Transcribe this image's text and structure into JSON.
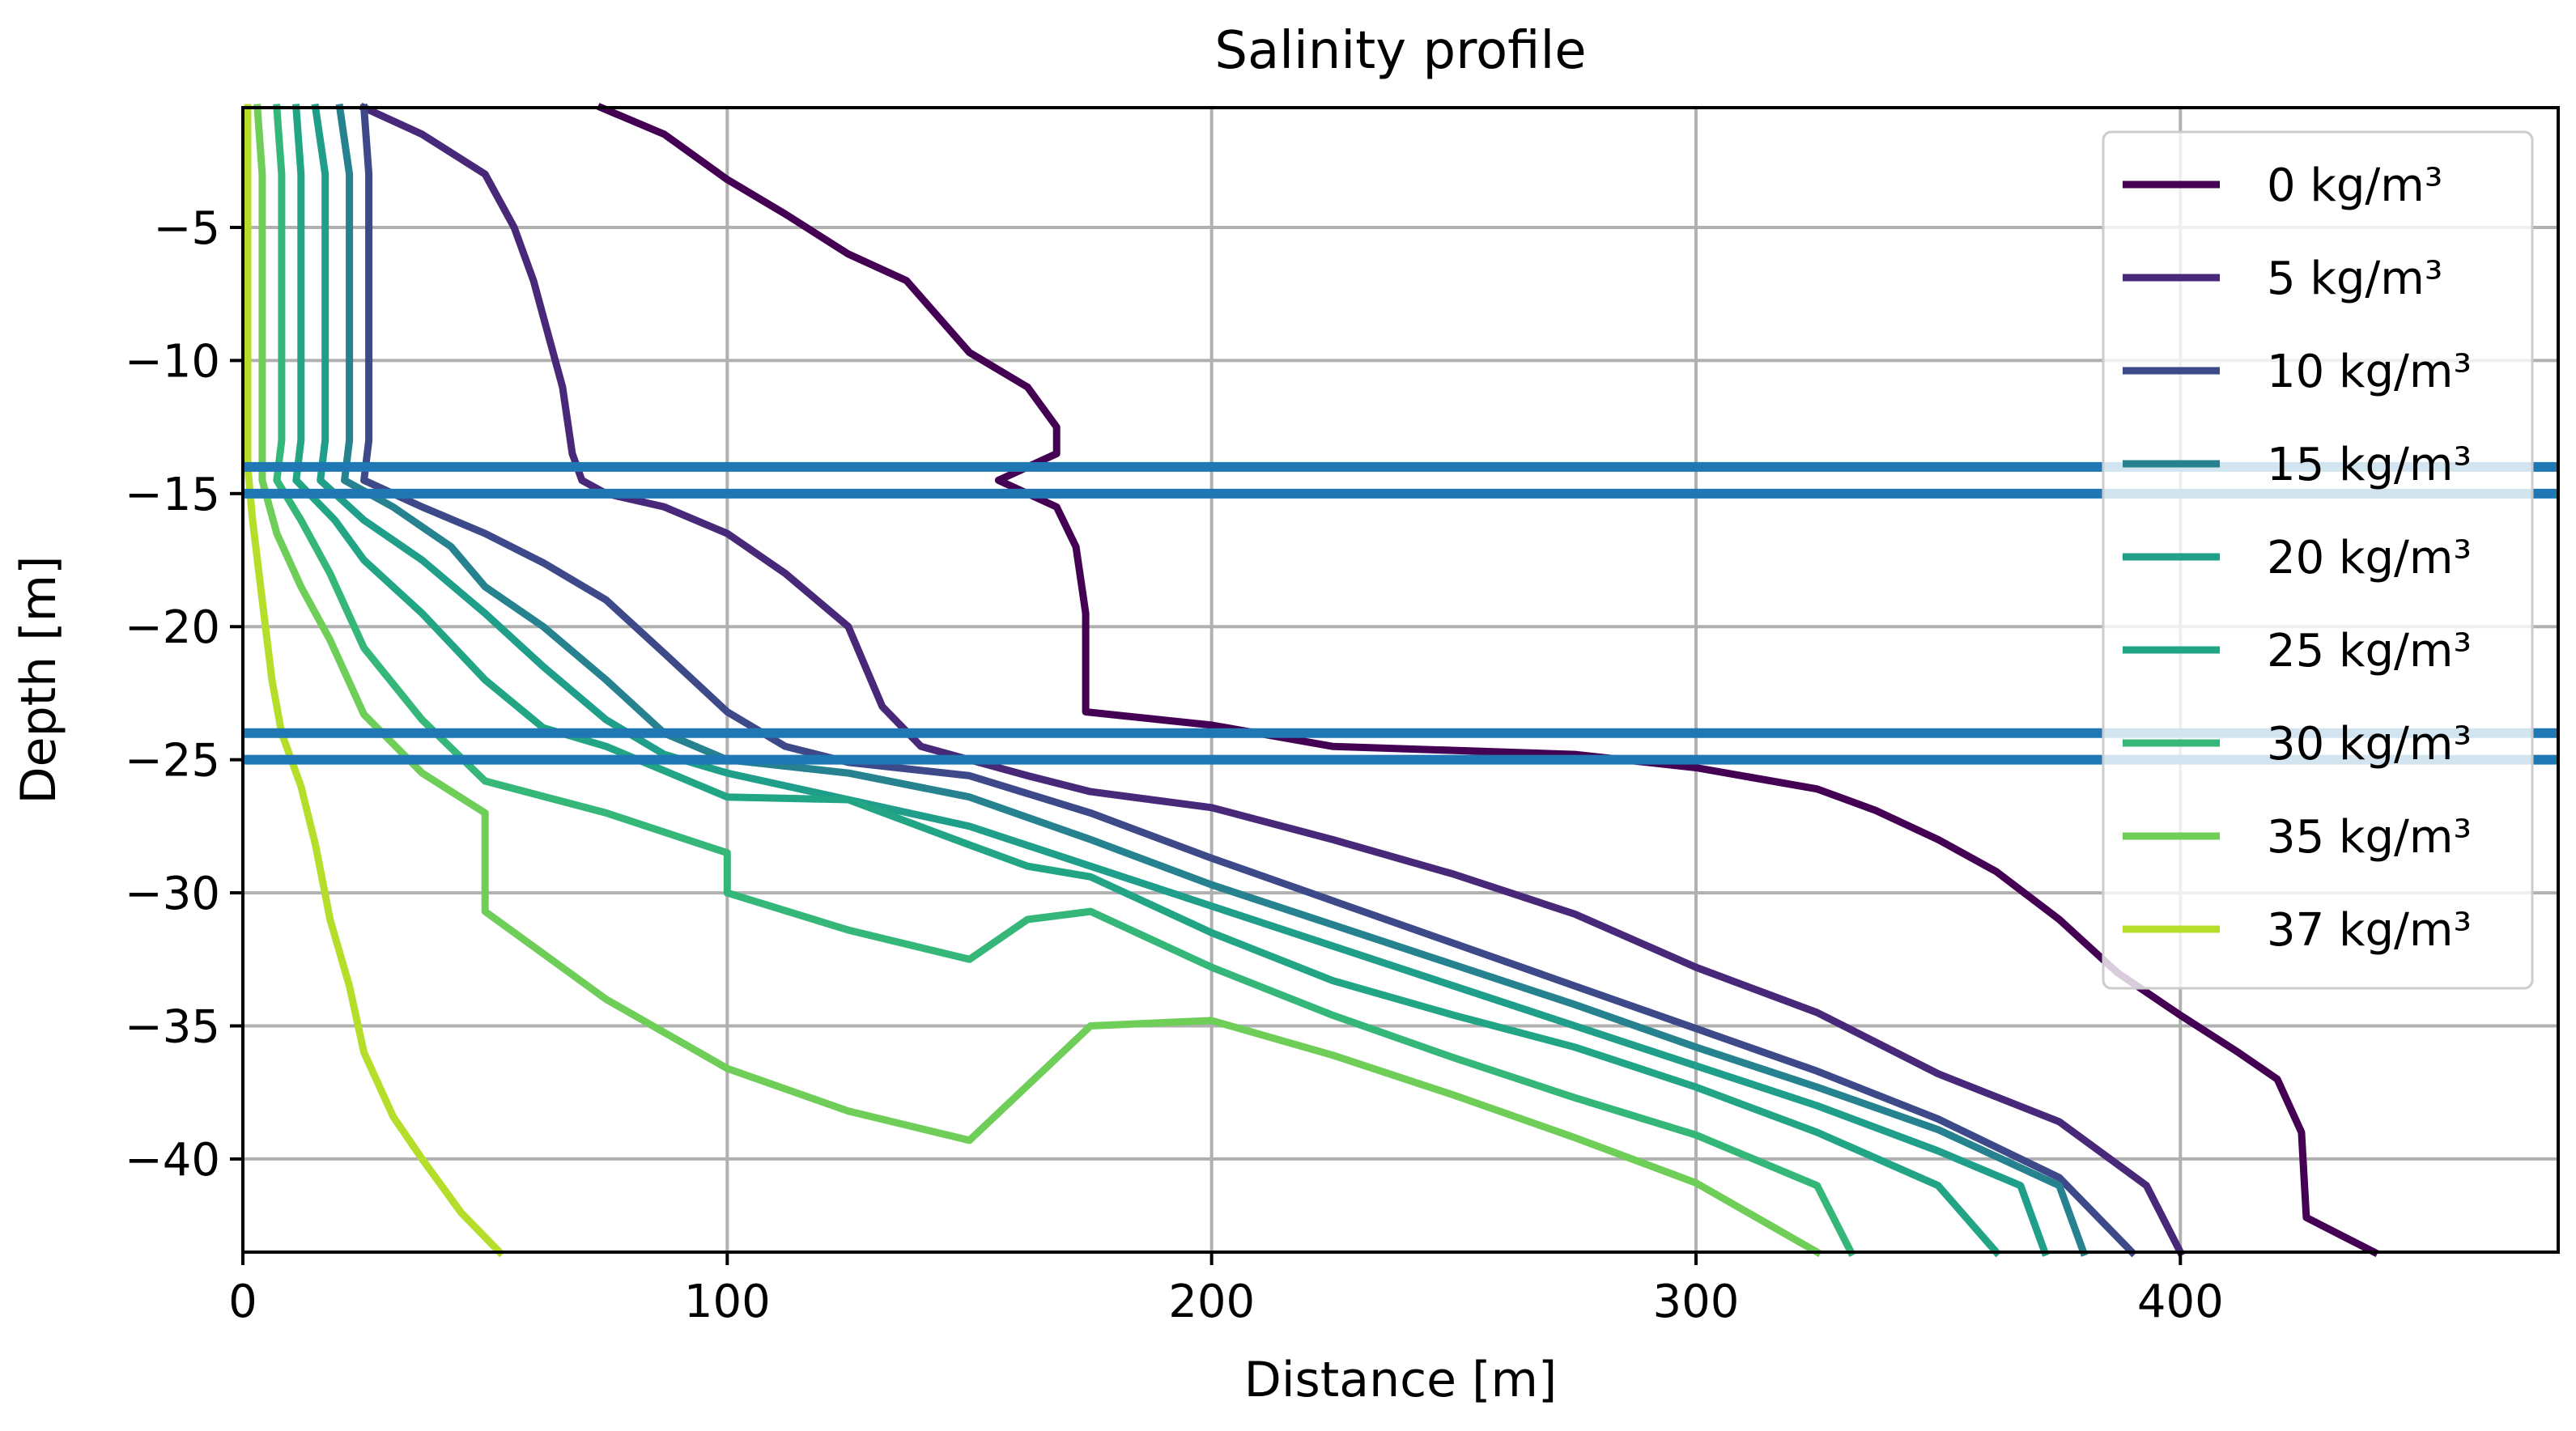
{
  "chart_data": {
    "type": "line",
    "title": "Salinity profile",
    "xlabel": "Distance [m]",
    "ylabel": "Depth [m]",
    "xlim": [
      0,
      478
    ],
    "ylim": [
      -43.5,
      -0.5
    ],
    "grid": true,
    "legend_position": "top-right",
    "x_ticks": [
      0,
      100,
      200,
      300,
      400
    ],
    "x_tick_labels": [
      "0",
      "100",
      "200",
      "300",
      "400"
    ],
    "y_ticks": [
      -5,
      -10,
      -15,
      -20,
      -25,
      -30,
      -35,
      -40
    ],
    "y_tick_labels": [
      "−5",
      "−10",
      "−15",
      "−20",
      "−25",
      "−30",
      "−35",
      "−40"
    ],
    "hlines": [
      {
        "y": -14,
        "color": "#1f77b4"
      },
      {
        "y": -15,
        "color": "#1f77b4"
      },
      {
        "y": -24,
        "color": "#1f77b4"
      },
      {
        "y": -25,
        "color": "#1f77b4"
      }
    ],
    "series": [
      {
        "name": "0 kg/m³",
        "color": "#440154",
        "points": [
          [
            74,
            -0.5
          ],
          [
            87,
            -1.5
          ],
          [
            100,
            -3.2
          ],
          [
            112,
            -4.5
          ],
          [
            125,
            -6
          ],
          [
            137,
            -7
          ],
          [
            150,
            -9.7
          ],
          [
            162,
            -11
          ],
          [
            168,
            -12.5
          ],
          [
            168,
            -13.5
          ],
          [
            156,
            -14.5
          ],
          [
            168,
            -15.5
          ],
          [
            172,
            -17
          ],
          [
            174,
            -19.5
          ],
          [
            174,
            -23.2
          ],
          [
            200,
            -23.7
          ],
          [
            225,
            -24.5
          ],
          [
            275,
            -24.8
          ],
          [
            300,
            -25.3
          ],
          [
            325,
            -26.1
          ],
          [
            337,
            -26.9
          ],
          [
            350,
            -28
          ],
          [
            362,
            -29.2
          ],
          [
            375,
            -31
          ],
          [
            387,
            -33
          ],
          [
            400,
            -34.6
          ],
          [
            412,
            -36
          ],
          [
            420,
            -37
          ],
          [
            425,
            -39
          ],
          [
            426,
            -42.2
          ],
          [
            440,
            -43.5
          ]
        ]
      },
      {
        "name": "5 kg/m³",
        "color": "#482878",
        "points": [
          [
            25,
            -0.5
          ],
          [
            37,
            -1.5
          ],
          [
            50,
            -3
          ],
          [
            56,
            -5
          ],
          [
            60,
            -7
          ],
          [
            63,
            -9
          ],
          [
            66,
            -11
          ],
          [
            68,
            -13.5
          ],
          [
            70,
            -14.5
          ],
          [
            75,
            -15
          ],
          [
            87,
            -15.5
          ],
          [
            100,
            -16.5
          ],
          [
            112,
            -18
          ],
          [
            125,
            -20
          ],
          [
            132,
            -23
          ],
          [
            140,
            -24.5
          ],
          [
            150,
            -25
          ],
          [
            162,
            -25.6
          ],
          [
            175,
            -26.2
          ],
          [
            200,
            -26.8
          ],
          [
            225,
            -28
          ],
          [
            250,
            -29.3
          ],
          [
            275,
            -30.8
          ],
          [
            300,
            -32.8
          ],
          [
            325,
            -34.5
          ],
          [
            350,
            -36.8
          ],
          [
            375,
            -38.6
          ],
          [
            393,
            -41
          ],
          [
            400,
            -43.5
          ]
        ]
      },
      {
        "name": "10 kg/m³",
        "color": "#3e4989",
        "points": [
          [
            25,
            -0.5
          ],
          [
            26,
            -3
          ],
          [
            26,
            -8
          ],
          [
            26,
            -13
          ],
          [
            25,
            -14.5
          ],
          [
            37,
            -15.5
          ],
          [
            50,
            -16.5
          ],
          [
            62,
            -17.6
          ],
          [
            75,
            -19
          ],
          [
            87,
            -21
          ],
          [
            100,
            -23.2
          ],
          [
            112,
            -24.5
          ],
          [
            125,
            -25.1
          ],
          [
            150,
            -25.6
          ],
          [
            175,
            -27
          ],
          [
            200,
            -28.7
          ],
          [
            225,
            -30.3
          ],
          [
            250,
            -31.9
          ],
          [
            275,
            -33.5
          ],
          [
            300,
            -35.1
          ],
          [
            325,
            -36.7
          ],
          [
            350,
            -38.5
          ],
          [
            375,
            -40.7
          ],
          [
            390,
            -43.5
          ]
        ]
      },
      {
        "name": "15 kg/m³",
        "color": "#26828e",
        "points": [
          [
            20,
            -0.5
          ],
          [
            22,
            -3
          ],
          [
            22,
            -8
          ],
          [
            22,
            -13
          ],
          [
            21,
            -14.5
          ],
          [
            31,
            -15.5
          ],
          [
            43,
            -17
          ],
          [
            50,
            -18.5
          ],
          [
            62,
            -20
          ],
          [
            75,
            -22
          ],
          [
            87,
            -24
          ],
          [
            100,
            -25
          ],
          [
            125,
            -25.5
          ],
          [
            150,
            -26.4
          ],
          [
            175,
            -28
          ],
          [
            200,
            -29.7
          ],
          [
            225,
            -31.2
          ],
          [
            250,
            -32.7
          ],
          [
            275,
            -34.2
          ],
          [
            300,
            -35.8
          ],
          [
            325,
            -37.3
          ],
          [
            350,
            -38.9
          ],
          [
            375,
            -41
          ],
          [
            380,
            -43.5
          ]
        ]
      },
      {
        "name": "20 kg/m³",
        "color": "#1f9e89",
        "points": [
          [
            15,
            -0.5
          ],
          [
            17,
            -3
          ],
          [
            17,
            -8
          ],
          [
            17,
            -13
          ],
          [
            16,
            -14.5
          ],
          [
            25,
            -16
          ],
          [
            37,
            -17.5
          ],
          [
            50,
            -19.5
          ],
          [
            62,
            -21.5
          ],
          [
            75,
            -23.5
          ],
          [
            87,
            -24.8
          ],
          [
            100,
            -25.5
          ],
          [
            125,
            -26.5
          ],
          [
            150,
            -27.5
          ],
          [
            175,
            -29
          ],
          [
            200,
            -30.5
          ],
          [
            225,
            -32
          ],
          [
            250,
            -33.5
          ],
          [
            275,
            -35
          ],
          [
            300,
            -36.5
          ],
          [
            325,
            -38
          ],
          [
            350,
            -39.7
          ],
          [
            367,
            -41
          ],
          [
            372,
            -43.5
          ]
        ]
      },
      {
        "name": "25 kg/m³",
        "color": "#21a585",
        "points": [
          [
            11,
            -0.5
          ],
          [
            12,
            -3
          ],
          [
            12,
            -8
          ],
          [
            12,
            -13
          ],
          [
            11,
            -14.5
          ],
          [
            19,
            -16
          ],
          [
            25,
            -17.5
          ],
          [
            37,
            -19.5
          ],
          [
            50,
            -22
          ],
          [
            62,
            -23.8
          ],
          [
            75,
            -24.5
          ],
          [
            100,
            -26.4
          ],
          [
            125,
            -26.5
          ],
          [
            150,
            -28.2
          ],
          [
            162,
            -29
          ],
          [
            175,
            -29.4
          ],
          [
            200,
            -31.5
          ],
          [
            225,
            -33.3
          ],
          [
            250,
            -34.6
          ],
          [
            275,
            -35.8
          ],
          [
            300,
            -37.3
          ],
          [
            325,
            -39
          ],
          [
            350,
            -41
          ],
          [
            362,
            -43.5
          ]
        ]
      },
      {
        "name": "30 kg/m³",
        "color": "#35b779",
        "points": [
          [
            7,
            -0.5
          ],
          [
            8,
            -3
          ],
          [
            8,
            -8
          ],
          [
            8,
            -13
          ],
          [
            7,
            -14.5
          ],
          [
            12,
            -16
          ],
          [
            18,
            -18
          ],
          [
            25,
            -20.8
          ],
          [
            37,
            -23.5
          ],
          [
            50,
            -25.8
          ],
          [
            75,
            -27
          ],
          [
            100,
            -28.5
          ],
          [
            100,
            -30
          ],
          [
            125,
            -31.4
          ],
          [
            150,
            -32.5
          ],
          [
            162,
            -31
          ],
          [
            175,
            -30.7
          ],
          [
            200,
            -32.8
          ],
          [
            225,
            -34.6
          ],
          [
            250,
            -36.2
          ],
          [
            275,
            -37.7
          ],
          [
            300,
            -39.1
          ],
          [
            325,
            -41
          ],
          [
            332,
            -43.5
          ]
        ]
      },
      {
        "name": "35 kg/m³",
        "color": "#6ece58",
        "points": [
          [
            3,
            -0.5
          ],
          [
            4,
            -3
          ],
          [
            4,
            -8
          ],
          [
            4,
            -13
          ],
          [
            4,
            -14.5
          ],
          [
            7,
            -16.5
          ],
          [
            12,
            -18.5
          ],
          [
            18,
            -20.5
          ],
          [
            25,
            -23.3
          ],
          [
            37,
            -25.5
          ],
          [
            50,
            -27
          ],
          [
            50,
            -30.7
          ],
          [
            75,
            -34
          ],
          [
            100,
            -36.6
          ],
          [
            125,
            -38.2
          ],
          [
            150,
            -39.3
          ],
          [
            175,
            -35
          ],
          [
            200,
            -34.8
          ],
          [
            225,
            -36.1
          ],
          [
            250,
            -37.6
          ],
          [
            275,
            -39.2
          ],
          [
            300,
            -40.9
          ],
          [
            325,
            -43.5
          ]
        ]
      },
      {
        "name": "37 kg/m³",
        "color": "#b5de2b",
        "points": [
          [
            1,
            -0.5
          ],
          [
            1,
            -5
          ],
          [
            1,
            -10
          ],
          [
            1,
            -14
          ],
          [
            2,
            -16
          ],
          [
            4,
            -19
          ],
          [
            6,
            -22
          ],
          [
            8,
            -24
          ],
          [
            12,
            -26
          ],
          [
            15,
            -28.2
          ],
          [
            18,
            -31
          ],
          [
            22,
            -33.5
          ],
          [
            25,
            -36
          ],
          [
            31,
            -38.4
          ],
          [
            37,
            -40
          ],
          [
            45,
            -42
          ],
          [
            53,
            -43.5
          ]
        ]
      }
    ]
  }
}
